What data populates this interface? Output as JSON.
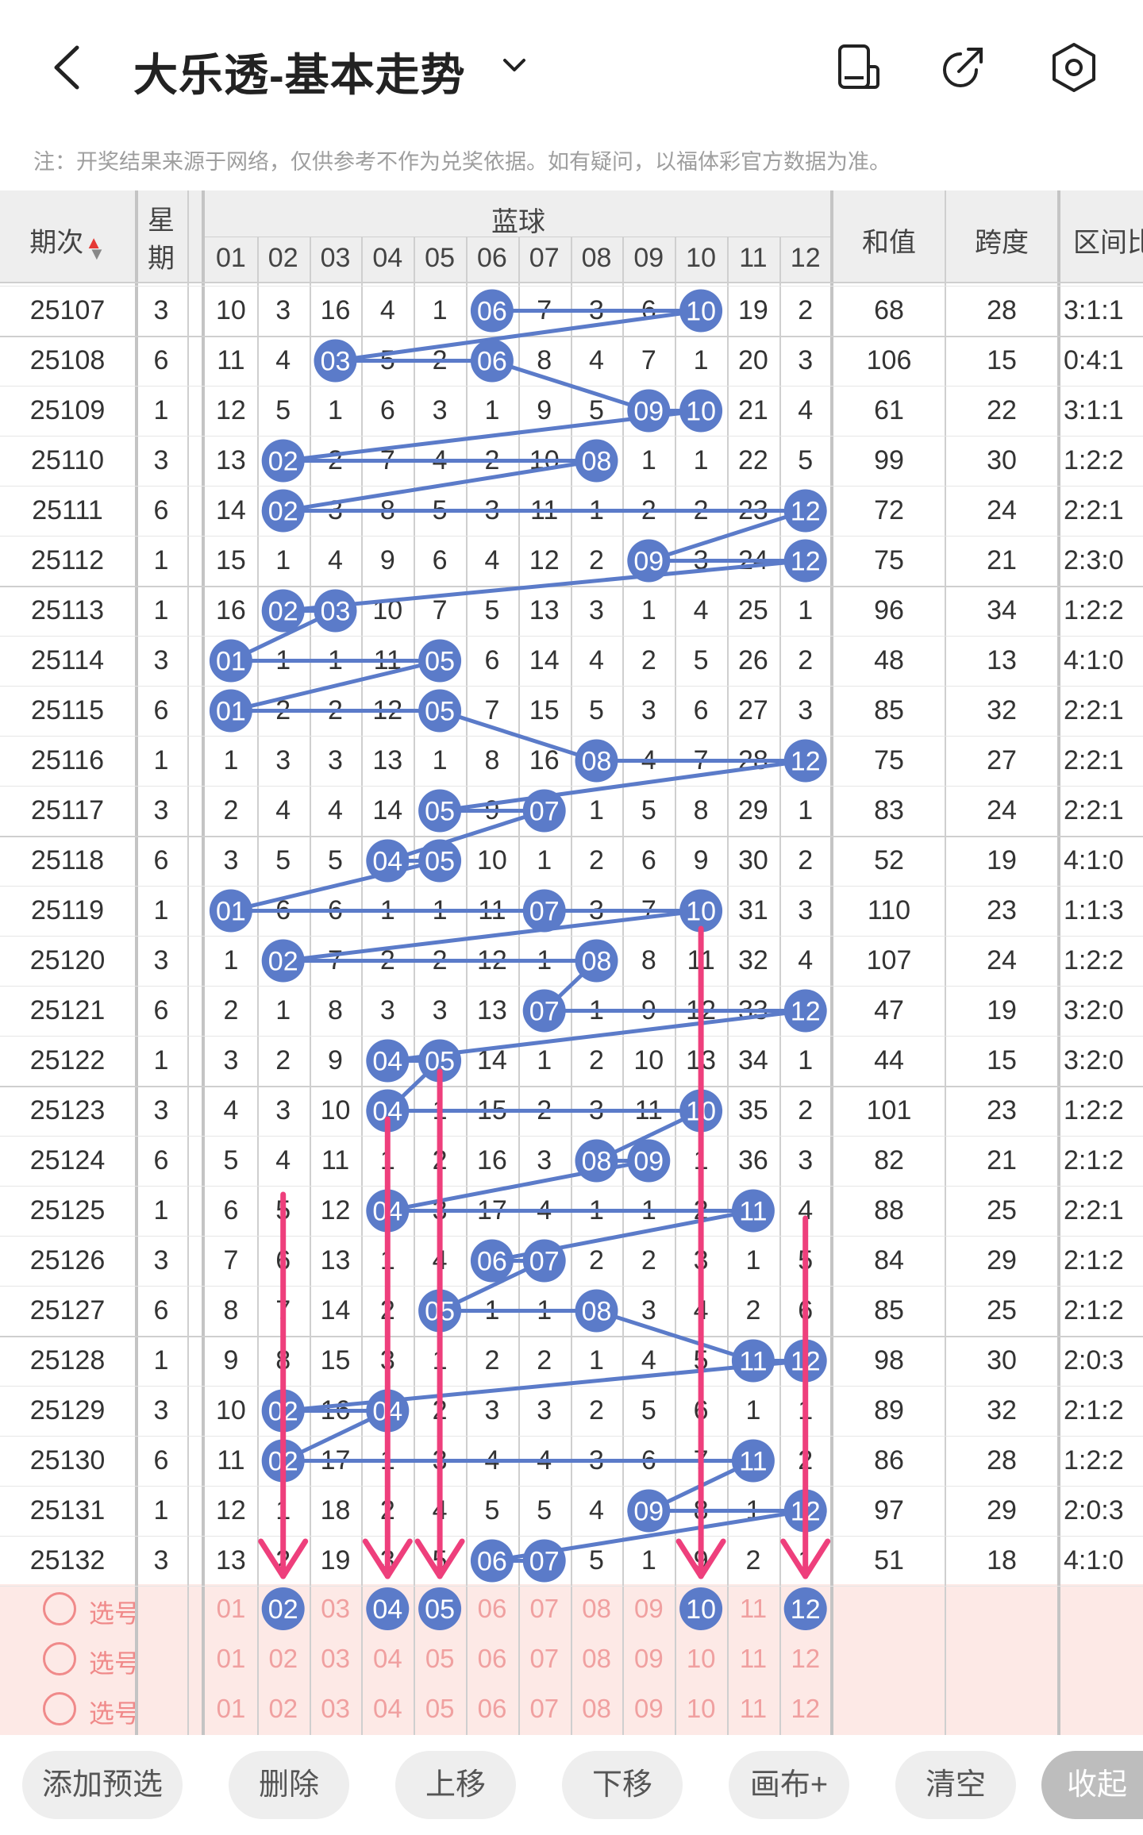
{
  "header": {
    "title": "大乐透-基本走势",
    "back_icon": "chevron-left-icon",
    "dropdown_icon": "chevron-down-icon",
    "actions": [
      "layout-icon",
      "share-icon",
      "settings-icon"
    ]
  },
  "notice": "注：开奖结果来源于网络，仅供参考不作为兑奖依据。如有疑问，以福体彩官方数据为准。",
  "table": {
    "col_issue": "期次",
    "col_week": "星期",
    "col_blue": "蓝球",
    "blue_numbers": [
      "01",
      "02",
      "03",
      "04",
      "05",
      "06",
      "07",
      "08",
      "09",
      "10",
      "11",
      "12"
    ],
    "col_sum": "和值",
    "col_span": "跨度",
    "col_ratio": "区间比",
    "rows": [
      {
        "issue": "25107",
        "week": "3",
        "cells": [
          "10",
          "3",
          "16",
          "4",
          "1",
          "06",
          "7",
          "3",
          "6",
          "10",
          "19",
          "2"
        ],
        "sum": "68",
        "span": "28",
        "ratio": "3:1:1"
      },
      {
        "issue": "25108",
        "week": "6",
        "cells": [
          "11",
          "4",
          "03",
          "5",
          "2",
          "06",
          "8",
          "4",
          "7",
          "1",
          "20",
          "3"
        ],
        "sum": "106",
        "span": "15",
        "ratio": "0:4:1"
      },
      {
        "issue": "25109",
        "week": "1",
        "cells": [
          "12",
          "5",
          "1",
          "6",
          "3",
          "1",
          "9",
          "5",
          "09",
          "10",
          "21",
          "4"
        ],
        "sum": "61",
        "span": "22",
        "ratio": "3:1:1"
      },
      {
        "issue": "25110",
        "week": "3",
        "cells": [
          "13",
          "02",
          "2",
          "7",
          "4",
          "2",
          "10",
          "08",
          "1",
          "1",
          "22",
          "5"
        ],
        "sum": "99",
        "span": "30",
        "ratio": "1:2:2"
      },
      {
        "issue": "25111",
        "week": "6",
        "cells": [
          "14",
          "02",
          "3",
          "8",
          "5",
          "3",
          "11",
          "1",
          "2",
          "2",
          "23",
          "12"
        ],
        "sum": "72",
        "span": "24",
        "ratio": "2:2:1"
      },
      {
        "issue": "25112",
        "week": "1",
        "cells": [
          "15",
          "1",
          "4",
          "9",
          "6",
          "4",
          "12",
          "2",
          "09",
          "3",
          "24",
          "12"
        ],
        "sum": "75",
        "span": "21",
        "ratio": "2:3:0"
      },
      {
        "issue": "25113",
        "week": "1",
        "cells": [
          "16",
          "02",
          "03",
          "10",
          "7",
          "5",
          "13",
          "3",
          "1",
          "4",
          "25",
          "1"
        ],
        "sum": "96",
        "span": "34",
        "ratio": "1:2:2"
      },
      {
        "issue": "25114",
        "week": "3",
        "cells": [
          "01",
          "1",
          "1",
          "11",
          "05",
          "6",
          "14",
          "4",
          "2",
          "5",
          "26",
          "2"
        ],
        "sum": "48",
        "span": "13",
        "ratio": "4:1:0"
      },
      {
        "issue": "25115",
        "week": "6",
        "cells": [
          "01",
          "2",
          "2",
          "12",
          "05",
          "7",
          "15",
          "5",
          "3",
          "6",
          "27",
          "3"
        ],
        "sum": "85",
        "span": "32",
        "ratio": "2:2:1"
      },
      {
        "issue": "25116",
        "week": "1",
        "cells": [
          "1",
          "3",
          "3",
          "13",
          "1",
          "8",
          "16",
          "08",
          "4",
          "7",
          "28",
          "12"
        ],
        "sum": "75",
        "span": "27",
        "ratio": "2:2:1"
      },
      {
        "issue": "25117",
        "week": "3",
        "cells": [
          "2",
          "4",
          "4",
          "14",
          "05",
          "9",
          "07",
          "1",
          "5",
          "8",
          "29",
          "1"
        ],
        "sum": "83",
        "span": "24",
        "ratio": "2:2:1"
      },
      {
        "issue": "25118",
        "week": "6",
        "cells": [
          "3",
          "5",
          "5",
          "04",
          "05",
          "10",
          "1",
          "2",
          "6",
          "9",
          "30",
          "2"
        ],
        "sum": "52",
        "span": "19",
        "ratio": "4:1:0"
      },
      {
        "issue": "25119",
        "week": "1",
        "cells": [
          "01",
          "6",
          "6",
          "1",
          "1",
          "11",
          "07",
          "3",
          "7",
          "10",
          "31",
          "3"
        ],
        "sum": "110",
        "span": "23",
        "ratio": "1:1:3"
      },
      {
        "issue": "25120",
        "week": "3",
        "cells": [
          "1",
          "02",
          "7",
          "2",
          "2",
          "12",
          "1",
          "08",
          "8",
          "11",
          "32",
          "4"
        ],
        "sum": "107",
        "span": "24",
        "ratio": "1:2:2"
      },
      {
        "issue": "25121",
        "week": "6",
        "cells": [
          "2",
          "1",
          "8",
          "3",
          "3",
          "13",
          "07",
          "1",
          "9",
          "12",
          "33",
          "12"
        ],
        "sum": "47",
        "span": "19",
        "ratio": "3:2:0"
      },
      {
        "issue": "25122",
        "week": "1",
        "cells": [
          "3",
          "2",
          "9",
          "04",
          "05",
          "14",
          "1",
          "2",
          "10",
          "13",
          "34",
          "1"
        ],
        "sum": "44",
        "span": "15",
        "ratio": "3:2:0"
      },
      {
        "issue": "25123",
        "week": "3",
        "cells": [
          "4",
          "3",
          "10",
          "04",
          "1",
          "15",
          "2",
          "3",
          "11",
          "10",
          "35",
          "2"
        ],
        "sum": "101",
        "span": "23",
        "ratio": "1:2:2"
      },
      {
        "issue": "25124",
        "week": "6",
        "cells": [
          "5",
          "4",
          "11",
          "1",
          "2",
          "16",
          "3",
          "08",
          "09",
          "1",
          "36",
          "3"
        ],
        "sum": "82",
        "span": "21",
        "ratio": "2:1:2"
      },
      {
        "issue": "25125",
        "week": "1",
        "cells": [
          "6",
          "5",
          "12",
          "04",
          "3",
          "17",
          "4",
          "1",
          "1",
          "2",
          "11",
          "4"
        ],
        "sum": "88",
        "span": "25",
        "ratio": "2:2:1"
      },
      {
        "issue": "25126",
        "week": "3",
        "cells": [
          "7",
          "6",
          "13",
          "1",
          "4",
          "06",
          "07",
          "2",
          "2",
          "3",
          "1",
          "5"
        ],
        "sum": "84",
        "span": "29",
        "ratio": "2:1:2"
      },
      {
        "issue": "25127",
        "week": "6",
        "cells": [
          "8",
          "7",
          "14",
          "2",
          "05",
          "1",
          "1",
          "08",
          "3",
          "4",
          "2",
          "6"
        ],
        "sum": "85",
        "span": "25",
        "ratio": "2:1:2"
      },
      {
        "issue": "25128",
        "week": "1",
        "cells": [
          "9",
          "8",
          "15",
          "3",
          "1",
          "2",
          "2",
          "1",
          "4",
          "5",
          "11",
          "12"
        ],
        "sum": "98",
        "span": "30",
        "ratio": "2:0:3"
      },
      {
        "issue": "25129",
        "week": "3",
        "cells": [
          "10",
          "02",
          "16",
          "04",
          "2",
          "3",
          "3",
          "2",
          "5",
          "6",
          "1",
          "1"
        ],
        "sum": "89",
        "span": "32",
        "ratio": "2:1:2"
      },
      {
        "issue": "25130",
        "week": "6",
        "cells": [
          "11",
          "02",
          "17",
          "1",
          "3",
          "4",
          "4",
          "3",
          "6",
          "7",
          "11",
          "2"
        ],
        "sum": "86",
        "span": "28",
        "ratio": "1:2:2"
      },
      {
        "issue": "25131",
        "week": "1",
        "cells": [
          "12",
          "1",
          "18",
          "2",
          "4",
          "5",
          "5",
          "4",
          "09",
          "8",
          "1",
          "12"
        ],
        "sum": "97",
        "span": "29",
        "ratio": "2:0:3"
      },
      {
        "issue": "25132",
        "week": "3",
        "cells": [
          "13",
          "2",
          "19",
          "3",
          "5",
          "06",
          "07",
          "5",
          "1",
          "9",
          "2",
          "1"
        ],
        "sum": "51",
        "span": "18",
        "ratio": "4:1:0"
      }
    ]
  },
  "picks": {
    "label": "选号",
    "rows": [
      {
        "selected": [
          "02",
          "04",
          "05",
          "10",
          "12"
        ]
      },
      {
        "selected": []
      },
      {
        "selected": []
      }
    ]
  },
  "toolbar": {
    "add": "添加预选",
    "delete": "删除",
    "up": "上移",
    "down": "下移",
    "canvas": "画布+",
    "clear": "清空",
    "collapse": "收起"
  },
  "colors": {
    "ball": "#5b7bc9",
    "line": "#5b7bc9",
    "arrow": "#ee3f7c",
    "pick_bg": "#fde9e6",
    "pick_text": "#f0a0a0"
  }
}
